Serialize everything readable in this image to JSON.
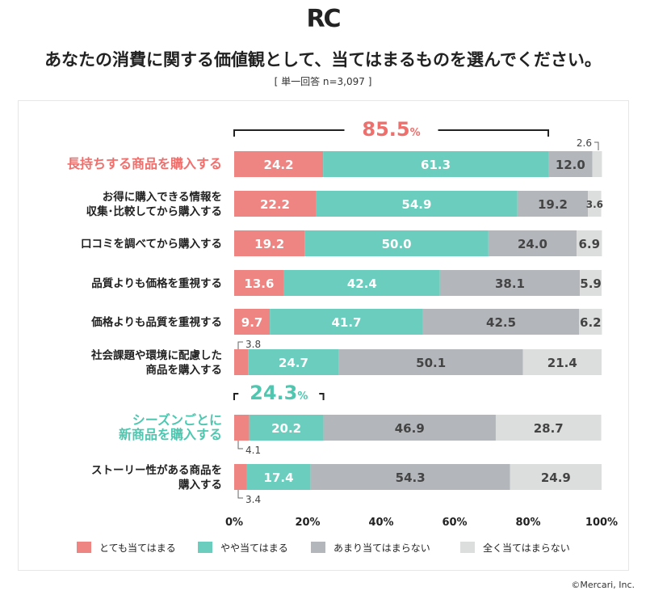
{
  "logo": "RC",
  "title": "あなたの消費に関する価値観として、当てはまるものを選んでください。",
  "subtitle": "[ 単一回答 n=3,097 ]",
  "copyright": "©Mercari, Inc.",
  "chart_data": {
    "type": "bar",
    "orientation": "horizontal-stacked-100",
    "categories": [
      [
        "長持ちする商品を購入する"
      ],
      [
        "お得に購入できる情報を",
        "収集･比較してから購入する"
      ],
      [
        "口コミを調べてから購入する"
      ],
      [
        "品質よりも価格を重視する"
      ],
      [
        "価格よりも品質を重視する"
      ],
      [
        "社会課題や環境に配慮した",
        "商品を購入する"
      ],
      [
        "シーズンごとに",
        "新商品を購入する"
      ],
      [
        "ストーリー性がある商品を",
        "購入する"
      ]
    ],
    "highlight_categories": [
      0,
      6
    ],
    "series": [
      {
        "name": "とても当てはまる",
        "color": "#ef8582",
        "values": [
          24.2,
          22.2,
          19.2,
          13.6,
          9.7,
          3.8,
          4.1,
          3.4
        ]
      },
      {
        "name": "やや当てはまる",
        "color": "#6bcdbd",
        "values": [
          61.3,
          54.9,
          50.0,
          42.4,
          41.7,
          24.7,
          20.2,
          17.4
        ]
      },
      {
        "name": "あまり当てはまらない",
        "color": "#b3b6ba",
        "values": [
          12.0,
          19.2,
          24.0,
          38.1,
          42.5,
          50.1,
          46.9,
          54.3
        ]
      },
      {
        "name": "全く当てはまらない",
        "color": "#dcdddd",
        "values": [
          2.6,
          3.6,
          6.9,
          5.9,
          6.2,
          21.4,
          28.7,
          24.9
        ]
      }
    ],
    "annotations": [
      {
        "category": 0,
        "text": "85.5",
        "unit": "%",
        "color": "#ef6f6c"
      },
      {
        "category": 6,
        "text": "24.3",
        "unit": "%",
        "color": "#4fc7b0"
      }
    ],
    "xticks": [
      "0%",
      "20%",
      "40%",
      "60%",
      "80%",
      "100%"
    ],
    "xlim": [
      0,
      100
    ]
  }
}
